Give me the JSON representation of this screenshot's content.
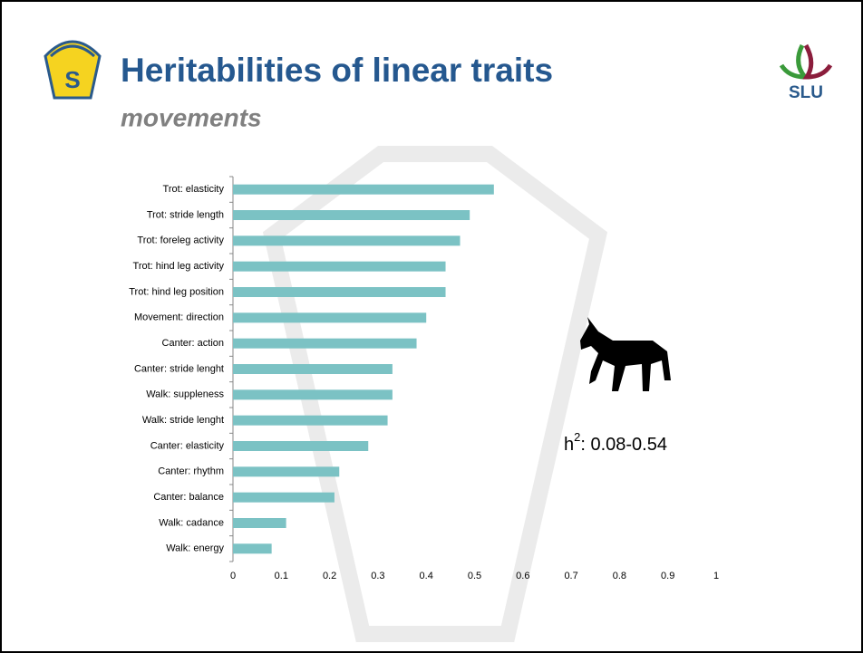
{
  "logo_left_text": "S",
  "logo_right_text": "SLU",
  "chart_data": {
    "type": "barh",
    "title": "Heritabilities of linear traits",
    "subtitle": "movements",
    "categories": [
      "Trot: elasticity",
      "Trot: stride length",
      "Trot: foreleg activity",
      "Trot: hind leg activity",
      "Trot: hind leg position",
      "Movement: direction",
      "Canter: action",
      "Canter: stride lenght",
      "Walk: suppleness",
      "Walk: stride lenght",
      "Canter: elasticity",
      "Canter: rhythm",
      "Canter: balance",
      "Walk: cadance",
      "Walk: energy"
    ],
    "values": [
      0.54,
      0.49,
      0.47,
      0.44,
      0.44,
      0.4,
      0.38,
      0.33,
      0.33,
      0.32,
      0.28,
      0.22,
      0.21,
      0.11,
      0.08
    ],
    "color": "#7bc2c4",
    "xlim": [
      0,
      1
    ],
    "xticks": [
      0,
      0.1,
      0.2,
      0.3,
      0.4,
      0.5,
      0.6,
      0.7,
      0.8,
      0.9,
      1
    ],
    "grid": false,
    "annotation": {
      "base": "h",
      "sup": "2",
      "rest": ": 0.08-0.54"
    }
  }
}
